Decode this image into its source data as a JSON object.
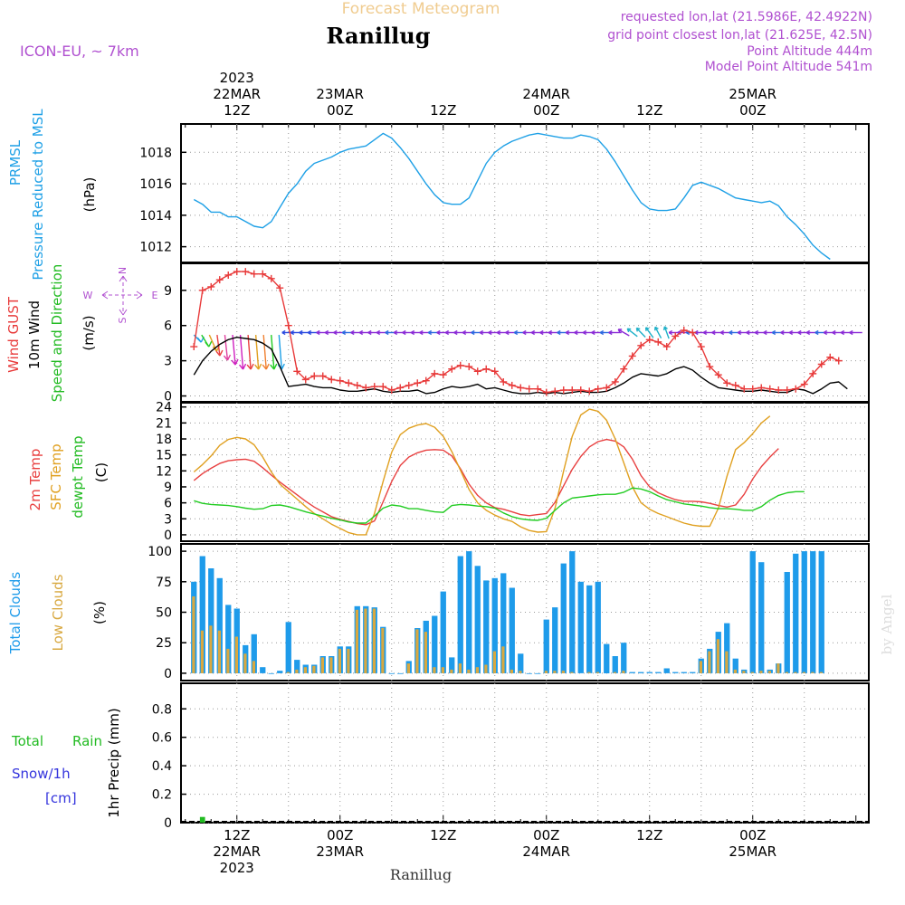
{
  "header": {
    "supertitle": "Forecast Meteogram",
    "station": "Ranillug",
    "model": "ICON-EU, ~ 7km",
    "requested": "requested lon,lat (21.5986E, 42.4922N)",
    "gridpoint": "grid point closest lon,lat (21.625E, 42.5N)",
    "point_alt": "Point Altitude 444m",
    "model_alt": "Model Point Altitude 541m",
    "footer_station": "Ranillug",
    "credit": "by Angel"
  },
  "colors": {
    "pressure": "#1ea0e6",
    "gust": "#e83a3a",
    "wind": "#000000",
    "temp2m": "#e84040",
    "sfc": "#e0a020",
    "dewpt": "#22cc22",
    "total_clouds": "#1e9bea",
    "low_clouds": "#d8a840",
    "rain": "#22bb22",
    "snow": "#3333dd",
    "purple": "#b050d0"
  },
  "time_axis": {
    "top_labels": [
      {
        "t": 12,
        "lines": [
          "2023",
          "22MAR",
          "12Z"
        ]
      },
      {
        "t": 24,
        "lines": [
          "23MAR",
          "00Z"
        ]
      },
      {
        "t": 36,
        "lines": [
          "12Z"
        ]
      },
      {
        "t": 48,
        "lines": [
          "24MAR",
          "00Z"
        ]
      },
      {
        "t": 60,
        "lines": [
          "12Z"
        ]
      },
      {
        "t": 72,
        "lines": [
          "25MAR",
          "00Z"
        ]
      }
    ],
    "bottom_labels": [
      {
        "t": 12,
        "lines": [
          "12Z",
          "22MAR",
          "2023"
        ]
      },
      {
        "t": 24,
        "lines": [
          "00Z",
          "23MAR"
        ]
      },
      {
        "t": 36,
        "lines": [
          "12Z"
        ]
      },
      {
        "t": 48,
        "lines": [
          "00Z",
          "24MAR"
        ]
      },
      {
        "t": 60,
        "lines": [
          "12Z"
        ]
      },
      {
        "t": 72,
        "lines": [
          "00Z",
          "25MAR"
        ]
      }
    ]
  },
  "chart_data": [
    {
      "type": "line",
      "title": "PRMSL Pressure Reduced to MSL",
      "ylabel": [
        "PRMSL",
        "Pressure Reduced to MSL",
        "(hPa)"
      ],
      "ylim": [
        1011,
        1019.8
      ],
      "yticks": [
        1012,
        1014,
        1016,
        1018
      ],
      "x_hours": [
        7,
        8,
        9,
        10,
        11,
        12,
        13,
        14,
        15,
        16,
        17,
        18,
        19,
        20,
        21,
        22,
        23,
        24,
        25,
        26,
        27,
        28,
        29,
        30,
        31,
        32,
        33,
        34,
        35,
        36,
        37,
        38,
        39,
        40,
        41,
        42,
        43,
        44,
        45,
        46,
        47,
        48,
        49,
        50,
        51,
        52,
        53,
        54,
        55,
        56,
        57,
        58,
        59,
        60,
        61,
        62,
        63,
        64,
        65,
        66,
        67,
        68,
        69,
        70,
        71,
        72,
        73,
        74,
        75,
        76,
        77,
        78,
        79,
        80,
        81,
        82,
        83,
        84
      ],
      "series": [
        {
          "name": "PRMSL",
          "values": [
            1015.0,
            1014.7,
            1014.2,
            1014.2,
            1013.9,
            1013.9,
            1013.6,
            1013.3,
            1013.2,
            1013.6,
            1014.5,
            1015.4,
            1016.0,
            1016.8,
            1017.3,
            1017.5,
            1017.7,
            1018.0,
            1018.2,
            1018.3,
            1018.4,
            1018.8,
            1019.2,
            1018.9,
            1018.3,
            1017.6,
            1016.8,
            1016.0,
            1015.3,
            1014.8,
            1014.7,
            1014.7,
            1015.1,
            1016.2,
            1017.3,
            1018.0,
            1018.4,
            1018.7,
            1018.9,
            1019.1,
            1019.2,
            1019.1,
            1019.0,
            1018.9,
            1018.9,
            1019.1,
            1019.0,
            1018.8,
            1018.2,
            1017.4,
            1016.5,
            1015.6,
            1014.8,
            1014.4,
            1014.3,
            1014.3,
            1014.4,
            1015.1,
            1015.9,
            1016.1,
            1015.9,
            1015.7,
            1015.4,
            1015.1,
            1015.0,
            1014.9,
            1014.8,
            1014.9,
            1014.6,
            1013.9,
            1013.4,
            1012.8,
            1012.1,
            1011.6,
            1011.2
          ]
        }
      ]
    },
    {
      "type": "line",
      "title": "Wind GUST / 10m Wind Speed and Direction",
      "ylabel": [
        "Wind GUST",
        "10m Wind",
        "Speed and Direction",
        "(m/s)"
      ],
      "compass": {
        "n": "N",
        "s": "S",
        "e": "E",
        "w": "W"
      },
      "ylim": [
        -0.5,
        11.3
      ],
      "yticks": [
        0,
        3,
        6,
        9
      ],
      "x_hours": [
        7,
        8,
        9,
        10,
        11,
        12,
        13,
        14,
        15,
        16,
        17,
        18,
        19,
        20,
        21,
        22,
        23,
        24,
        25,
        26,
        27,
        28,
        29,
        30,
        31,
        32,
        33,
        34,
        35,
        36,
        37,
        38,
        39,
        40,
        41,
        42,
        43,
        44,
        45,
        46,
        47,
        48,
        49,
        50,
        51,
        52,
        53,
        54,
        55,
        56,
        57,
        58,
        59,
        60,
        61,
        62,
        63,
        64,
        65,
        66,
        67,
        68,
        69,
        70,
        71,
        72,
        73,
        74,
        75,
        76,
        77,
        78,
        79,
        80,
        81,
        82,
        83,
        84
      ],
      "series": [
        {
          "name": "Wind GUST",
          "values": [
            4.2,
            9.0,
            9.3,
            9.9,
            10.3,
            10.6,
            10.6,
            10.4,
            10.4,
            10.0,
            9.2,
            6.0,
            2.1,
            1.4,
            1.7,
            1.7,
            1.4,
            1.3,
            1.1,
            0.9,
            0.7,
            0.8,
            0.8,
            0.5,
            0.7,
            0.9,
            1.1,
            1.3,
            1.9,
            1.8,
            2.3,
            2.6,
            2.5,
            2.1,
            2.3,
            2.1,
            1.2,
            0.9,
            0.7,
            0.6,
            0.6,
            0.3,
            0.4,
            0.5,
            0.5,
            0.5,
            0.4,
            0.6,
            0.7,
            1.2,
            2.3,
            3.4,
            4.3,
            4.8,
            4.6,
            4.2,
            5.1,
            5.6,
            5.4,
            4.2,
            2.5,
            1.8,
            1.1,
            0.9,
            0.6,
            0.6,
            0.7,
            0.6,
            0.5,
            0.5,
            0.6,
            1.0,
            1.9,
            2.7,
            3.3,
            3.0
          ]
        },
        {
          "name": "10m Wind",
          "values": [
            1.8,
            3.0,
            3.8,
            4.4,
            4.8,
            5.0,
            4.9,
            4.8,
            4.5,
            4.0,
            2.5,
            0.8,
            0.9,
            1.0,
            0.8,
            0.7,
            0.7,
            0.5,
            0.4,
            0.4,
            0.5,
            0.6,
            0.4,
            0.3,
            0.4,
            0.4,
            0.5,
            0.2,
            0.3,
            0.6,
            0.8,
            0.7,
            0.8,
            1.0,
            0.6,
            0.7,
            0.5,
            0.3,
            0.2,
            0.2,
            0.3,
            0.2,
            0.3,
            0.2,
            0.3,
            0.4,
            0.3,
            0.3,
            0.4,
            0.7,
            1.1,
            1.6,
            1.9,
            1.8,
            1.7,
            1.9,
            2.3,
            2.5,
            2.2,
            1.6,
            1.1,
            0.7,
            0.6,
            0.5,
            0.4,
            0.4,
            0.5,
            0.4,
            0.3,
            0.3,
            0.6,
            0.5,
            0.2,
            0.6,
            1.1,
            1.2,
            0.6
          ]
        }
      ]
    },
    {
      "type": "line",
      "title": "2m Temp / SFC Temp / dewpt Temp",
      "ylabel": [
        "2m Temp",
        "SFC Temp",
        "dewpt Temp",
        "(C)"
      ],
      "ylim": [
        -1.2,
        24.8
      ],
      "yticks": [
        0,
        3,
        6,
        9,
        12,
        15,
        18,
        21,
        24
      ],
      "x_hours": [
        7,
        8,
        9,
        10,
        11,
        12,
        13,
        14,
        15,
        16,
        17,
        18,
        19,
        20,
        21,
        22,
        23,
        24,
        25,
        26,
        27,
        28,
        29,
        30,
        31,
        32,
        33,
        34,
        35,
        36,
        37,
        38,
        39,
        40,
        41,
        42,
        43,
        44,
        45,
        46,
        47,
        48,
        49,
        50,
        51,
        52,
        53,
        54,
        55,
        56,
        57,
        58,
        59,
        60,
        61,
        62,
        63,
        64,
        65,
        66,
        67,
        68,
        69,
        70,
        71,
        72,
        73,
        74,
        75,
        76,
        77,
        78,
        79,
        80,
        81,
        82,
        83,
        84
      ],
      "series": [
        {
          "name": "2m Temp",
          "values": [
            10.2,
            11.5,
            12.5,
            13.4,
            13.9,
            14.1,
            14.2,
            13.8,
            12.6,
            11.2,
            9.9,
            8.7,
            7.5,
            6.3,
            5.2,
            4.3,
            3.4,
            2.9,
            2.5,
            2.1,
            1.9,
            2.6,
            6.2,
            10.0,
            13.0,
            14.6,
            15.4,
            15.9,
            16.0,
            15.9,
            14.8,
            12.4,
            9.5,
            7.4,
            6.0,
            5.1,
            4.8,
            4.3,
            3.8,
            3.6,
            3.8,
            4.0,
            6.1,
            9.2,
            12.3,
            14.7,
            16.5,
            17.5,
            17.9,
            17.6,
            16.5,
            14.2,
            11.1,
            9.0,
            7.9,
            7.2,
            6.6,
            6.3,
            6.3,
            6.2,
            5.9,
            5.5,
            5.2,
            5.6,
            7.6,
            10.5,
            12.8,
            14.6,
            16.2
          ]
        },
        {
          "name": "SFC Temp",
          "values": [
            11.8,
            13.2,
            14.8,
            16.8,
            17.9,
            18.3,
            18.0,
            16.9,
            14.6,
            11.8,
            9.5,
            8.1,
            6.7,
            5.3,
            4.0,
            3.0,
            2.0,
            1.2,
            0.4,
            0.0,
            0.0,
            4.0,
            10.0,
            15.5,
            18.8,
            20.0,
            20.6,
            20.9,
            20.2,
            18.5,
            15.6,
            12.1,
            8.5,
            6.0,
            4.6,
            3.7,
            3.0,
            2.5,
            1.5,
            0.8,
            0.5,
            0.6,
            5.0,
            12.0,
            18.5,
            22.5,
            23.6,
            23.2,
            21.5,
            18.0,
            13.5,
            9.0,
            6.0,
            4.8,
            4.0,
            3.4,
            2.8,
            2.2,
            1.8,
            1.6,
            1.6,
            5.0,
            11.0,
            16.0,
            17.3,
            19.0,
            21.0,
            22.3
          ]
        },
        {
          "name": "dewpt Temp",
          "values": [
            6.4,
            5.9,
            5.7,
            5.6,
            5.5,
            5.3,
            5.0,
            4.8,
            4.9,
            5.5,
            5.6,
            5.3,
            4.8,
            4.3,
            3.9,
            3.5,
            3.1,
            2.8,
            2.4,
            2.2,
            2.2,
            3.5,
            5.0,
            5.6,
            5.4,
            4.9,
            4.9,
            4.6,
            4.3,
            4.2,
            5.5,
            5.7,
            5.6,
            5.4,
            5.3,
            5.0,
            4.1,
            3.4,
            3.0,
            2.8,
            2.7,
            3.1,
            4.6,
            6.0,
            6.9,
            7.1,
            7.3,
            7.5,
            7.6,
            7.6,
            8.0,
            8.8,
            8.6,
            8.1,
            7.3,
            6.6,
            6.2,
            5.8,
            5.6,
            5.4,
            5.1,
            4.9,
            4.9,
            4.8,
            4.6,
            4.6,
            5.3,
            6.5,
            7.4,
            7.9,
            8.1,
            8.1
          ]
        }
      ]
    },
    {
      "type": "bar",
      "title": "Total Clouds / Low Clouds",
      "ylabel": [
        "Total Clouds",
        "Low Clouds",
        "(%)"
      ],
      "ylim": [
        -6,
        106
      ],
      "yticks": [
        0,
        25,
        50,
        75,
        100
      ],
      "x_hours": [
        7,
        8,
        9,
        10,
        11,
        12,
        13,
        14,
        15,
        16,
        17,
        18,
        19,
        20,
        21,
        22,
        23,
        24,
        25,
        26,
        27,
        28,
        29,
        30,
        31,
        32,
        33,
        34,
        35,
        36,
        37,
        38,
        39,
        40,
        41,
        42,
        43,
        44,
        45,
        46,
        47,
        48,
        49,
        50,
        51,
        52,
        53,
        54,
        55,
        56,
        57,
        58,
        59,
        60,
        61,
        62,
        63,
        64,
        65,
        66,
        67,
        68,
        69,
        70,
        71,
        72,
        73,
        74,
        75,
        76,
        77,
        78,
        79,
        80,
        81,
        82,
        83,
        84
      ],
      "series": [
        {
          "name": "Total Clouds",
          "values": [
            75,
            96,
            86,
            78,
            56,
            53,
            23,
            32,
            5,
            0,
            2,
            42,
            11,
            7,
            7,
            14,
            14,
            22,
            22,
            55,
            55,
            54,
            38,
            0,
            0,
            10,
            37,
            43,
            47,
            67,
            13,
            96,
            100,
            88,
            76,
            78,
            82,
            70,
            16,
            0,
            0,
            44,
            54,
            90,
            100,
            75,
            72,
            75,
            24,
            14,
            25,
            1,
            1,
            1,
            1,
            4,
            1,
            1,
            1,
            12,
            20,
            34,
            41,
            12,
            3,
            100,
            91,
            3,
            8,
            83,
            98,
            100,
            100,
            100
          ]
        },
        {
          "name": "Low Clouds",
          "values": [
            63,
            35,
            39,
            35,
            20,
            30,
            16,
            10,
            0,
            0,
            0,
            1,
            3,
            5,
            6,
            13,
            13,
            20,
            20,
            52,
            53,
            53,
            37,
            0,
            0,
            8,
            36,
            34,
            5,
            5,
            3,
            8,
            3,
            5,
            7,
            18,
            22,
            3,
            2,
            0,
            0,
            2,
            2,
            2,
            1,
            0,
            1,
            1,
            0,
            1,
            2,
            0,
            0,
            0,
            0,
            0,
            0,
            0,
            0,
            10,
            18,
            28,
            18,
            3,
            2,
            1,
            2,
            2,
            8,
            1,
            1,
            1,
            1,
            1
          ]
        }
      ]
    },
    {
      "type": "bar",
      "title": "1hr Precip",
      "ylabel": [
        "1hr Precip (mm)"
      ],
      "left_labels": [
        "Total",
        "Rain",
        "Snow/1h",
        "[cm]"
      ],
      "ylim": [
        0,
        0.98
      ],
      "yticks": [
        0,
        0.2,
        0.4,
        0.6,
        0.8
      ],
      "ytick_labels": [
        "0",
        "0.2",
        "0.4",
        "0.6",
        "0.8"
      ],
      "x_hours": [
        8
      ],
      "series": [
        {
          "name": "Rain",
          "values": [
            0.04
          ]
        }
      ]
    }
  ]
}
